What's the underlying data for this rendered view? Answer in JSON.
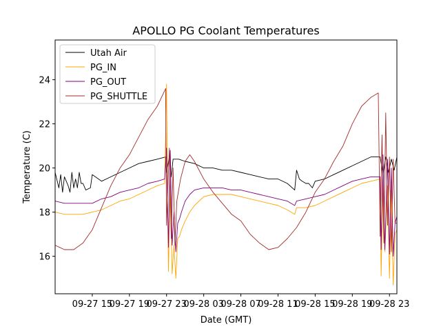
{
  "chart_data": {
    "type": "line",
    "title": "APOLLO PG Coolant Temperatures",
    "xlabel": "Date (GMT)",
    "ylabel": "Temperature (C)",
    "x_unit": "hours since 2023-09-27 00:00 GMT",
    "xlim": [
      11.0,
      47.8
    ],
    "ylim": [
      14.3,
      25.8
    ],
    "x_ticks": [
      {
        "value": 15,
        "label": "09-27 15"
      },
      {
        "value": 19,
        "label": "09-27 19"
      },
      {
        "value": 23,
        "label": "09-27 23"
      },
      {
        "value": 27,
        "label": "09-28 03"
      },
      {
        "value": 31,
        "label": "09-28 07"
      },
      {
        "value": 35,
        "label": "09-28 11"
      },
      {
        "value": 39,
        "label": "09-28 15"
      },
      {
        "value": 43,
        "label": "09-28 19"
      },
      {
        "value": 47,
        "label": "09-28 23"
      }
    ],
    "y_ticks": [
      {
        "value": 16,
        "label": "16"
      },
      {
        "value": 18,
        "label": "18"
      },
      {
        "value": 20,
        "label": "20"
      },
      {
        "value": 22,
        "label": "22"
      },
      {
        "value": 24,
        "label": "24"
      }
    ],
    "legend_position": "upper-left",
    "series": [
      {
        "name": "Utah Air",
        "color": "#000000",
        "x": [
          11.0,
          11.4,
          11.6,
          11.8,
          12.0,
          12.2,
          12.4,
          12.6,
          12.8,
          13.0,
          13.2,
          13.4,
          13.6,
          13.8,
          14.0,
          14.3,
          14.8,
          15.0,
          16.0,
          17.0,
          18.0,
          19.0,
          20.0,
          21.0,
          22.0,
          22.9,
          23.0,
          23.3,
          23.5,
          23.7,
          24.0,
          24.3,
          25.0,
          26.0,
          27.0,
          28.0,
          29.0,
          30.0,
          31.0,
          32.0,
          33.0,
          34.0,
          35.0,
          36.0,
          36.8,
          37.0,
          37.3,
          37.6,
          38.0,
          38.3,
          38.7,
          39.0,
          40.0,
          41.0,
          42.0,
          43.0,
          44.0,
          45.0,
          46.0,
          46.3,
          46.6,
          46.9,
          47.2,
          47.5,
          47.8
        ],
        "y": [
          19.8,
          19.1,
          19.7,
          18.9,
          19.6,
          19.4,
          19.2,
          18.9,
          19.8,
          19.1,
          19.5,
          19.1,
          19.8,
          19.3,
          19.3,
          19.0,
          19.1,
          19.7,
          19.4,
          19.6,
          19.8,
          20.0,
          20.2,
          20.3,
          20.4,
          20.5,
          19.8,
          20.5,
          19.6,
          20.4,
          20.4,
          20.4,
          20.3,
          20.2,
          20.0,
          20.0,
          19.9,
          19.9,
          19.8,
          19.7,
          19.6,
          19.5,
          19.5,
          19.3,
          19.0,
          19.9,
          19.5,
          19.4,
          19.3,
          19.3,
          19.1,
          19.4,
          19.5,
          19.7,
          19.9,
          20.1,
          20.3,
          20.5,
          20.5,
          19.7,
          20.5,
          19.8,
          20.4,
          19.9,
          20.5
        ]
      },
      {
        "name": "PG_IN",
        "color": "#ffa500",
        "x": [
          11.0,
          12.0,
          13.0,
          14.0,
          15.0,
          16.0,
          17.0,
          18.0,
          19.0,
          20.0,
          21.0,
          22.0,
          22.8,
          23.0,
          23.2,
          23.4,
          23.6,
          23.8,
          24.0,
          24.2,
          24.4,
          24.6,
          25.0,
          25.5,
          26.0,
          27.0,
          28.0,
          29.0,
          30.0,
          31.0,
          32.0,
          33.0,
          34.0,
          35.0,
          36.0,
          36.8,
          37.0,
          38.0,
          39.0,
          40.0,
          41.0,
          42.0,
          43.0,
          44.0,
          45.0,
          46.0,
          46.1,
          46.3,
          46.5,
          46.8,
          47.0,
          47.2,
          47.4,
          47.6,
          47.8
        ],
        "y": [
          18.0,
          17.9,
          17.9,
          17.9,
          18.0,
          18.1,
          18.3,
          18.5,
          18.6,
          18.8,
          19.0,
          19.2,
          19.3,
          23.8,
          15.3,
          19.2,
          15.2,
          16.5,
          15.0,
          16.8,
          16.9,
          17.2,
          17.6,
          18.0,
          18.3,
          18.7,
          18.8,
          18.8,
          18.8,
          18.7,
          18.6,
          18.5,
          18.4,
          18.3,
          18.1,
          17.9,
          18.2,
          18.2,
          18.3,
          18.5,
          18.7,
          18.9,
          19.1,
          19.3,
          19.4,
          19.5,
          15.1,
          19.3,
          16.2,
          19.2,
          15.0,
          19.0,
          14.7,
          17.0,
          17.2
        ]
      },
      {
        "name": "PG_OUT",
        "color": "#800080",
        "x": [
          11.0,
          12.0,
          13.0,
          14.0,
          15.0,
          16.0,
          17.0,
          18.0,
          19.0,
          20.0,
          21.0,
          22.0,
          22.8,
          23.0,
          23.2,
          23.4,
          23.6,
          23.8,
          24.0,
          24.2,
          24.4,
          24.6,
          25.0,
          25.5,
          26.0,
          27.0,
          28.0,
          29.0,
          30.0,
          31.0,
          32.0,
          33.0,
          34.0,
          35.0,
          36.0,
          36.8,
          37.0,
          38.0,
          39.0,
          40.0,
          41.0,
          42.0,
          43.0,
          44.0,
          45.0,
          46.0,
          46.1,
          46.3,
          46.5,
          46.8,
          47.0,
          47.2,
          47.4,
          47.6,
          47.8
        ],
        "y": [
          18.5,
          18.4,
          18.4,
          18.4,
          18.4,
          18.6,
          18.7,
          18.9,
          19.0,
          19.1,
          19.3,
          19.4,
          19.5,
          20.9,
          16.4,
          20.8,
          16.5,
          18.0,
          16.2,
          17.5,
          17.7,
          18.0,
          18.5,
          18.8,
          19.0,
          19.1,
          19.1,
          19.1,
          19.0,
          19.0,
          18.9,
          18.8,
          18.7,
          18.6,
          18.5,
          18.3,
          18.5,
          18.6,
          18.7,
          18.8,
          19.0,
          19.2,
          19.4,
          19.5,
          19.6,
          19.6,
          16.3,
          20.6,
          16.3,
          20.4,
          16.1,
          20.0,
          16.0,
          17.5,
          17.8
        ]
      },
      {
        "name": "PG_SHUTTLE",
        "color": "#a52a2a",
        "x": [
          11.0,
          11.5,
          12.0,
          13.0,
          14.0,
          15.0,
          16.0,
          17.0,
          18.0,
          19.0,
          20.0,
          21.0,
          22.0,
          22.9,
          23.0,
          23.3,
          23.5,
          23.7,
          23.9,
          24.1,
          24.5,
          25.0,
          25.5,
          26.0,
          27.0,
          28.0,
          29.0,
          30.0,
          31.0,
          32.0,
          33.0,
          34.0,
          35.0,
          36.0,
          37.0,
          38.0,
          39.0,
          40.0,
          41.0,
          42.0,
          43.0,
          44.0,
          45.0,
          45.8,
          46.0,
          46.2,
          46.4,
          46.6,
          46.8,
          47.0,
          47.2,
          47.4,
          47.6,
          47.8
        ],
        "y": [
          16.5,
          16.4,
          16.3,
          16.3,
          16.6,
          17.2,
          18.2,
          19.2,
          20.0,
          20.6,
          21.4,
          22.2,
          22.8,
          23.6,
          17.4,
          20.9,
          16.8,
          20.0,
          16.5,
          18.5,
          19.5,
          20.3,
          20.6,
          20.3,
          19.5,
          18.9,
          18.4,
          17.9,
          17.6,
          17.0,
          16.6,
          16.3,
          16.4,
          16.8,
          17.3,
          18.0,
          18.9,
          19.5,
          20.3,
          21.0,
          22.0,
          22.8,
          23.2,
          23.4,
          16.9,
          21.5,
          16.6,
          22.5,
          17.4,
          20.5,
          16.2,
          20.4,
          17.5,
          17.5
        ]
      }
    ]
  }
}
